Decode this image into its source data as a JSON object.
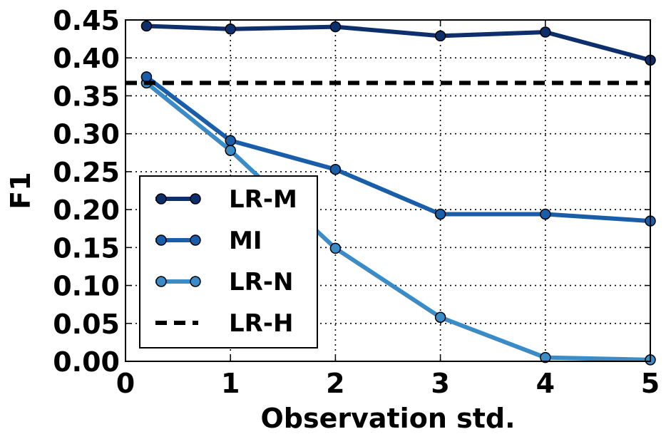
{
  "chart_data": {
    "type": "line",
    "title": "",
    "xlabel": "Observation std.",
    "ylabel": "F1",
    "xlim": [
      0,
      5
    ],
    "ylim": [
      0,
      0.45
    ],
    "grid": true,
    "legend_position": "lower-left",
    "x_ticks": [
      "0",
      "1",
      "2",
      "3",
      "4",
      "5"
    ],
    "y_ticks": [
      "0.00",
      "0.05",
      "0.10",
      "0.15",
      "0.20",
      "0.25",
      "0.30",
      "0.35",
      "0.40",
      "0.45"
    ],
    "series": [
      {
        "name": "LR-M",
        "color": "#0d2f6b",
        "style": "solid-markers",
        "x": [
          0.2,
          1,
          2,
          3,
          4,
          5
        ],
        "values": [
          0.442,
          0.438,
          0.441,
          0.429,
          0.434,
          0.397
        ]
      },
      {
        "name": "MI",
        "color": "#1a5ea9",
        "style": "solid-markers",
        "x": [
          0.2,
          1,
          2,
          3,
          4,
          5
        ],
        "values": [
          0.375,
          0.291,
          0.253,
          0.194,
          0.194,
          0.185
        ]
      },
      {
        "name": "LR-N",
        "color": "#3b8bc7",
        "style": "solid-markers",
        "x": [
          0.2,
          1,
          2,
          3,
          4,
          5
        ],
        "values": [
          0.367,
          0.278,
          0.149,
          0.058,
          0.005,
          0.002
        ]
      },
      {
        "name": "LR-H",
        "color": "#000000",
        "style": "dashed",
        "x": [
          0,
          5
        ],
        "values": [
          0.367,
          0.367
        ]
      }
    ]
  }
}
